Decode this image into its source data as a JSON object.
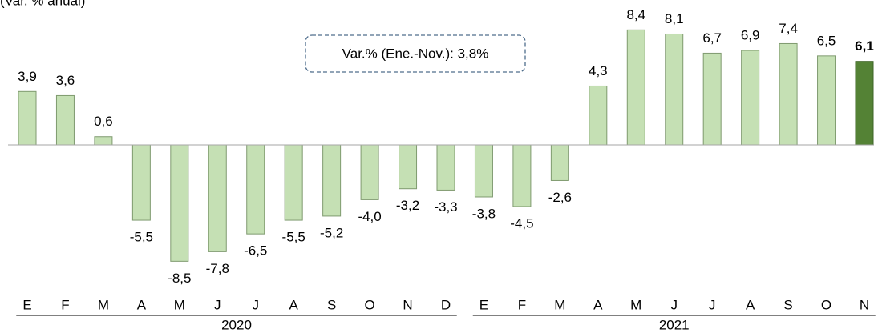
{
  "chart_data": {
    "type": "bar",
    "subtitle": "(Var. % anual)",
    "annotation": "Var.% (Ene.-Nov.): 3,8%",
    "categories": [
      "E",
      "F",
      "M",
      "A",
      "M",
      "J",
      "J",
      "A",
      "S",
      "O",
      "N",
      "D",
      "E",
      "F",
      "M",
      "A",
      "M",
      "J",
      "J",
      "A",
      "S",
      "O",
      "N"
    ],
    "values": [
      3.9,
      3.6,
      0.6,
      -5.5,
      -8.5,
      -7.8,
      -6.5,
      -5.5,
      -5.2,
      -4.0,
      -3.2,
      -3.3,
      -3.8,
      -4.5,
      -2.6,
      4.3,
      8.4,
      8.1,
      6.7,
      6.9,
      7.4,
      6.5,
      6.1
    ],
    "value_labels": [
      "3,9",
      "3,6",
      "0,6",
      "-5,5",
      "-8,5",
      "-7,8",
      "-6,5",
      "-5,5",
      "-5,2",
      "-4,0",
      "-3,2",
      "-3,3",
      "-3,8",
      "-4,5",
      "-2,6",
      "4,3",
      "8,4",
      "8,1",
      "6,7",
      "6,9",
      "7,4",
      "6,5",
      "6,1"
    ],
    "colors": [
      "#c5e0b4",
      "#c5e0b4",
      "#c5e0b4",
      "#c5e0b4",
      "#c5e0b4",
      "#c5e0b4",
      "#c5e0b4",
      "#c5e0b4",
      "#c5e0b4",
      "#c5e0b4",
      "#c5e0b4",
      "#c5e0b4",
      "#c5e0b4",
      "#c5e0b4",
      "#c5e0b4",
      "#c5e0b4",
      "#c5e0b4",
      "#c5e0b4",
      "#c5e0b4",
      "#c5e0b4",
      "#c5e0b4",
      "#c5e0b4",
      "#548235"
    ],
    "groups": [
      {
        "label": "2020",
        "count": 12
      },
      {
        "label": "2021",
        "count": 11
      }
    ]
  }
}
